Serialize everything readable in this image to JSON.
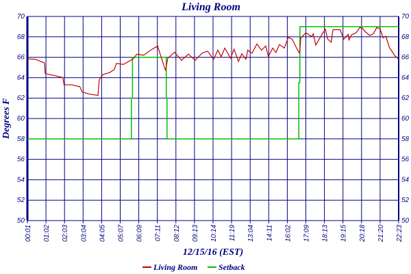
{
  "chart_data": {
    "type": "line",
    "title": "Living Room",
    "xlabel": "12/15/16 (EST)",
    "ylabel": "Degrees F",
    "ylim": [
      50,
      70
    ],
    "yticks": [
      "50",
      "52",
      "54",
      "56",
      "58",
      "60",
      "62",
      "64",
      "66",
      "68",
      "70"
    ],
    "xticks": [
      "00:01",
      "01:02",
      "02:03",
      "03:04",
      "04:05",
      "05:07",
      "06:09",
      "07:11",
      "08:12",
      "09:13",
      "10:14",
      "11:19",
      "13:04",
      "14:11",
      "16:02",
      "17:09",
      "18:13",
      "19:15",
      "20:18",
      "21:20",
      "22:23"
    ],
    "x_units": "tick index (0 = 00:01, 20 = 22:23)",
    "grid": true,
    "legend_position": "bottom-center",
    "series": [
      {
        "name": "Living Room",
        "color": "#c00000",
        "step": false,
        "points": [
          [
            0,
            65.85
          ],
          [
            0.44,
            65.8
          ],
          [
            0.92,
            65.45
          ],
          [
            0.96,
            64.4
          ],
          [
            1.48,
            64.2
          ],
          [
            1.91,
            64.0
          ],
          [
            1.97,
            63.3
          ],
          [
            2.4,
            63.3
          ],
          [
            2.83,
            63.1
          ],
          [
            2.95,
            62.6
          ],
          [
            3.32,
            62.4
          ],
          [
            3.8,
            62.26
          ],
          [
            3.87,
            63.8
          ],
          [
            4.06,
            64.3
          ],
          [
            4.43,
            64.5
          ],
          [
            4.68,
            64.8
          ],
          [
            4.8,
            65.4
          ],
          [
            5.17,
            65.3
          ],
          [
            5.66,
            65.8
          ],
          [
            5.9,
            66.3
          ],
          [
            6.27,
            66.2
          ],
          [
            6.64,
            66.7
          ],
          [
            7.01,
            67.1
          ],
          [
            7.44,
            64.7
          ],
          [
            7.56,
            65.9
          ],
          [
            7.93,
            66.5
          ],
          [
            8.3,
            65.7
          ],
          [
            8.67,
            66.3
          ],
          [
            9.04,
            65.7
          ],
          [
            9.41,
            66.4
          ],
          [
            9.7,
            66.6
          ],
          [
            10.03,
            65.8
          ],
          [
            10.26,
            66.7
          ],
          [
            10.44,
            66.05
          ],
          [
            10.63,
            66.9
          ],
          [
            10.95,
            65.9
          ],
          [
            11.13,
            66.8
          ],
          [
            11.37,
            65.6
          ],
          [
            11.55,
            66.35
          ],
          [
            11.77,
            65.8
          ],
          [
            11.87,
            66.7
          ],
          [
            12.1,
            66.4
          ],
          [
            12.36,
            67.3
          ],
          [
            12.61,
            66.7
          ],
          [
            12.84,
            67.1
          ],
          [
            12.98,
            66.06
          ],
          [
            13.21,
            66.9
          ],
          [
            13.39,
            66.46
          ],
          [
            13.58,
            67.25
          ],
          [
            13.84,
            66.9
          ],
          [
            14.05,
            67.96
          ],
          [
            14.27,
            67.76
          ],
          [
            14.5,
            66.9
          ],
          [
            14.66,
            66.4
          ],
          [
            14.73,
            67.9
          ],
          [
            15.0,
            68.4
          ],
          [
            15.31,
            68.03
          ],
          [
            15.4,
            68.3
          ],
          [
            15.53,
            67.2
          ],
          [
            15.87,
            68.25
          ],
          [
            16.05,
            68.75
          ],
          [
            16.17,
            67.8
          ],
          [
            16.36,
            67.47
          ],
          [
            16.46,
            68.7
          ],
          [
            16.85,
            68.7
          ],
          [
            17.04,
            67.76
          ],
          [
            17.28,
            68.25
          ],
          [
            17.32,
            67.7
          ],
          [
            17.46,
            68.2
          ],
          [
            17.71,
            68.4
          ],
          [
            17.9,
            68.9
          ],
          [
            18.02,
            68.9
          ],
          [
            18.2,
            68.5
          ],
          [
            18.45,
            68.13
          ],
          [
            18.63,
            68.3
          ],
          [
            18.82,
            68.9
          ],
          [
            19.0,
            68.8
          ],
          [
            19.16,
            67.9
          ],
          [
            19.31,
            68.07
          ],
          [
            19.49,
            67.0
          ],
          [
            19.8,
            66.13
          ],
          [
            19.99,
            65.84
          ]
        ]
      },
      {
        "name": "Setback",
        "color": "#00c000",
        "step": false,
        "points": [
          [
            0,
            58
          ],
          [
            5.6,
            58
          ],
          [
            5.6,
            62
          ],
          [
            5.66,
            62
          ],
          [
            5.66,
            66
          ],
          [
            7.48,
            66
          ],
          [
            7.48,
            62
          ],
          [
            7.52,
            62
          ],
          [
            7.52,
            58
          ],
          [
            14.62,
            58
          ],
          [
            14.62,
            63.5
          ],
          [
            14.68,
            63.5
          ],
          [
            14.68,
            69
          ],
          [
            20,
            69
          ]
        ]
      }
    ]
  }
}
